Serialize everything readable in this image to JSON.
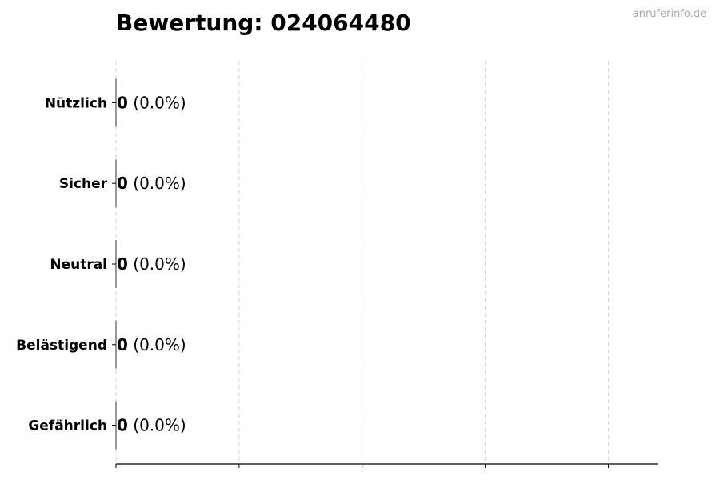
{
  "title": "Bewertung: 024064480",
  "watermark": "anruferinfo.de",
  "chart_data": {
    "type": "bar",
    "orientation": "horizontal",
    "title": "Bewertung: 024064480",
    "categories": [
      "Nützlich",
      "Sicher",
      "Neutral",
      "Belästigend",
      "Gefährlich"
    ],
    "values": [
      0,
      0,
      0,
      0,
      0
    ],
    "data_labels": [
      {
        "count": "0",
        "pct": "(0.0%)"
      },
      {
        "count": "0",
        "pct": "(0.0%)"
      },
      {
        "count": "0",
        "pct": "(0.0%)"
      },
      {
        "count": "0",
        "pct": "(0.0%)"
      },
      {
        "count": "0",
        "pct": "(0.0%)"
      }
    ],
    "xlim": [
      0,
      4.4
    ],
    "xticks": [
      0,
      1,
      2,
      3,
      4
    ],
    "xtick_labels_shown": false,
    "grid": "x-dashed",
    "legend": "none",
    "xlabel": "",
    "ylabel": ""
  }
}
